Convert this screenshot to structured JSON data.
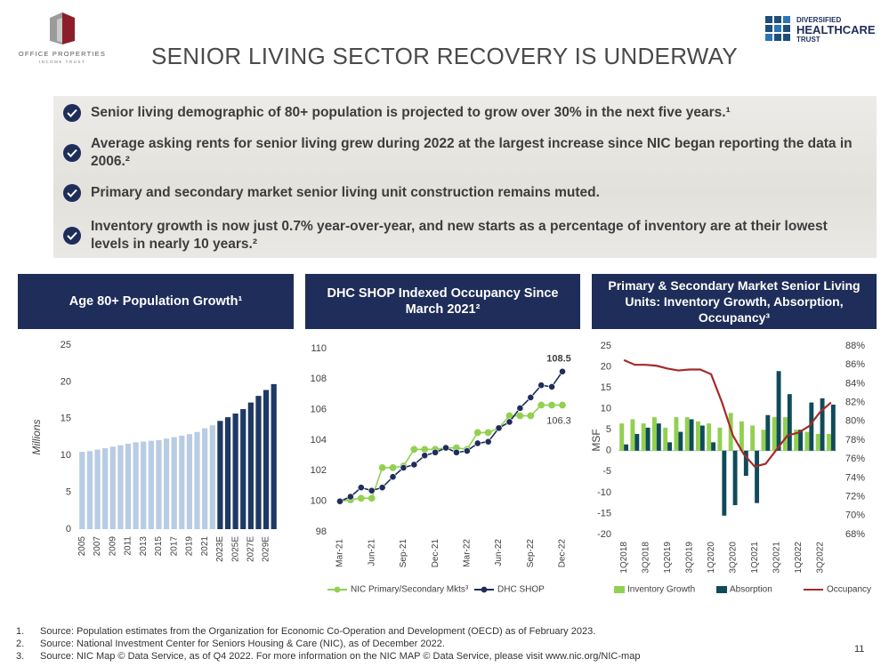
{
  "header": {
    "logo_left": [
      "OFFICE PROPERTIES",
      "INCOME TRUST"
    ],
    "logo_right": [
      "DIVERSIFIED",
      "HEALTHCARE",
      "TRUST"
    ],
    "title": "SENIOR LIVING SECTOR RECOVERY IS UNDERWAY"
  },
  "bullets": [
    "Senior living demographic of 80+ population is projected to grow over 30% in the next five years.¹",
    "Average asking rents for senior living grew during 2022 at the largest increase since NIC began reporting the data in 2006.²",
    "Primary and secondary market senior living unit construction remains muted.",
    "Inventory growth is now just 0.7% year-over-year, and new starts as a percentage of inventory are at their lowest levels in nearly 10 years.²"
  ],
  "chart_data": [
    {
      "type": "bar",
      "title": "Age 80+ Population Growth¹",
      "ylabel": "Millions",
      "categories": [
        "2005",
        null,
        "2007",
        null,
        "2009",
        null,
        "2011",
        null,
        "2013",
        null,
        "2015",
        null,
        "2017",
        null,
        "2019",
        null,
        "2021",
        null,
        "2023E",
        null,
        "2025E",
        null,
        "2027E",
        null,
        "2029E",
        null
      ],
      "values": [
        10.5,
        10.6,
        10.8,
        11.0,
        11.2,
        11.4,
        11.6,
        11.8,
        11.9,
        12.0,
        12.1,
        12.3,
        12.5,
        12.7,
        12.9,
        13.2,
        13.7,
        14.1,
        14.7,
        15.2,
        15.7,
        16.3,
        17.2,
        18.1,
        18.9,
        19.7
      ],
      "colors": [
        "#b8cce4",
        "#b8cce4",
        "#b8cce4",
        "#b8cce4",
        "#b8cce4",
        "#b8cce4",
        "#b8cce4",
        "#b8cce4",
        "#b8cce4",
        "#b8cce4",
        "#b8cce4",
        "#b8cce4",
        "#b8cce4",
        "#b8cce4",
        "#b8cce4",
        "#b8cce4",
        "#b8cce4",
        "#b8cce4",
        "#1f3864",
        "#1f3864",
        "#1f3864",
        "#1f3864",
        "#1f3864",
        "#1f3864",
        "#1f3864",
        "#1f3864"
      ],
      "ylim": [
        0,
        25
      ],
      "yticks": [
        0,
        5,
        10,
        15,
        20,
        25
      ],
      "grid": false
    },
    {
      "type": "line",
      "title": "DHC SHOP Indexed Occupancy Since March 2021²",
      "categories": [
        "Mar-21",
        null,
        null,
        "Jun-21",
        null,
        null,
        "Sep-21",
        null,
        null,
        "Dec-21",
        null,
        null,
        "Mar-22",
        null,
        null,
        "Jun-22",
        null,
        null,
        "Sep-22",
        null,
        null,
        "Dec-22"
      ],
      "series": [
        {
          "name": "NIC Primary/Secondary Mkts³",
          "color": "#92d050",
          "values": [
            100,
            100.1,
            100.2,
            100.2,
            102.2,
            102.2,
            102.3,
            103.4,
            103.4,
            103.4,
            103.5,
            103.5,
            103.4,
            104.5,
            104.5,
            104.8,
            105.6,
            105.6,
            105.6,
            106.3,
            106.3,
            106.3
          ],
          "value_labels": [
            null,
            null,
            null,
            null,
            null,
            null,
            null,
            null,
            null,
            null,
            null,
            null,
            null,
            null,
            null,
            null,
            null,
            null,
            null,
            null,
            null,
            "106.3"
          ]
        },
        {
          "name": "DHC SHOP",
          "color": "#1f2d5a",
          "values": [
            100,
            100.3,
            100.9,
            100.7,
            100.9,
            101.6,
            102.2,
            102.4,
            103.0,
            103.2,
            103.5,
            103.2,
            103.3,
            103.8,
            103.9,
            104.8,
            105.2,
            106.1,
            106.8,
            107.6,
            107.5,
            108.5
          ],
          "value_labels": [
            null,
            null,
            null,
            null,
            null,
            null,
            null,
            null,
            null,
            null,
            null,
            null,
            null,
            null,
            null,
            null,
            null,
            null,
            null,
            null,
            null,
            "108.5"
          ]
        }
      ],
      "ylim": [
        98,
        110
      ],
      "yticks": [
        98,
        100,
        102,
        104,
        106,
        108,
        110
      ],
      "grid": false
    },
    {
      "type": "combo",
      "title": "Primary & Secondary Market Senior Living Units: Inventory Growth, Absorption, Occupancy³",
      "ylabel": "MSF",
      "categories": [
        "1Q2018",
        null,
        "3Q2018",
        null,
        "1Q2019",
        null,
        "3Q2019",
        null,
        "1Q2020",
        null,
        "3Q2020",
        null,
        "1Q2021",
        null,
        "3Q2021",
        null,
        "1Q2022",
        null,
        "3Q2022",
        null
      ],
      "series": [
        {
          "name": "Inventory Growth",
          "type": "bar",
          "color": "#92d050",
          "values": [
            6.5,
            7.5,
            6.5,
            8,
            5.5,
            8,
            8,
            7,
            6.5,
            5.5,
            9,
            7,
            6,
            5,
            8,
            8,
            5,
            4.5,
            4,
            4
          ]
        },
        {
          "name": "Absorption",
          "type": "bar",
          "color": "#0f4b5a",
          "values": [
            1.5,
            4,
            5.5,
            6.5,
            2,
            4.5,
            7.5,
            6,
            2,
            -15.5,
            -13,
            -6,
            -12.5,
            8.5,
            19,
            13.5,
            5,
            11.5,
            12.5,
            11
          ]
        },
        {
          "name": "Occupancy",
          "type": "line",
          "axis": "y2",
          "color": "#a52a2a",
          "values": [
            86.5,
            86,
            86,
            85.9,
            85.6,
            85.4,
            85.5,
            85.5,
            85,
            82,
            78.5,
            76.5,
            75.2,
            75.5,
            77,
            78.5,
            78.8,
            79.5,
            81,
            82
          ]
        }
      ],
      "ylim": [
        -20,
        25
      ],
      "yticks": [
        -20,
        -15,
        -10,
        -5,
        0,
        5,
        10,
        15,
        20,
        25
      ],
      "y2lim": [
        68,
        88
      ],
      "y2ticks": [
        {
          "value": 68,
          "label": "68%"
        },
        {
          "value": 70,
          "label": "70%"
        },
        {
          "value": 72,
          "label": "72%"
        },
        {
          "value": 74,
          "label": "74%"
        },
        {
          "value": 76,
          "label": "76%"
        },
        {
          "value": 78,
          "label": "78%"
        },
        {
          "value": 80,
          "label": "80%"
        },
        {
          "value": 82,
          "label": "82%"
        },
        {
          "value": 84,
          "label": "84%"
        },
        {
          "value": 86,
          "label": "86%"
        },
        {
          "value": 88,
          "label": "88%"
        }
      ],
      "grid": false
    }
  ],
  "footnotes": [
    {
      "number": "1.",
      "text": "Source: Population estimates from the Organization for Economic Co-Operation and Development (OECD) as of February 2023."
    },
    {
      "number": "2.",
      "text": "Source: National Investment Center for Seniors Housing & Care (NIC), as of December 2022."
    },
    {
      "number": "3.",
      "text": "Source: NIC Map © Data Service, as of Q4 2022.  For more information on the NIC MAP © Data Service, please visit www.nic.org/NIC-map"
    }
  ],
  "page_number": 11
}
